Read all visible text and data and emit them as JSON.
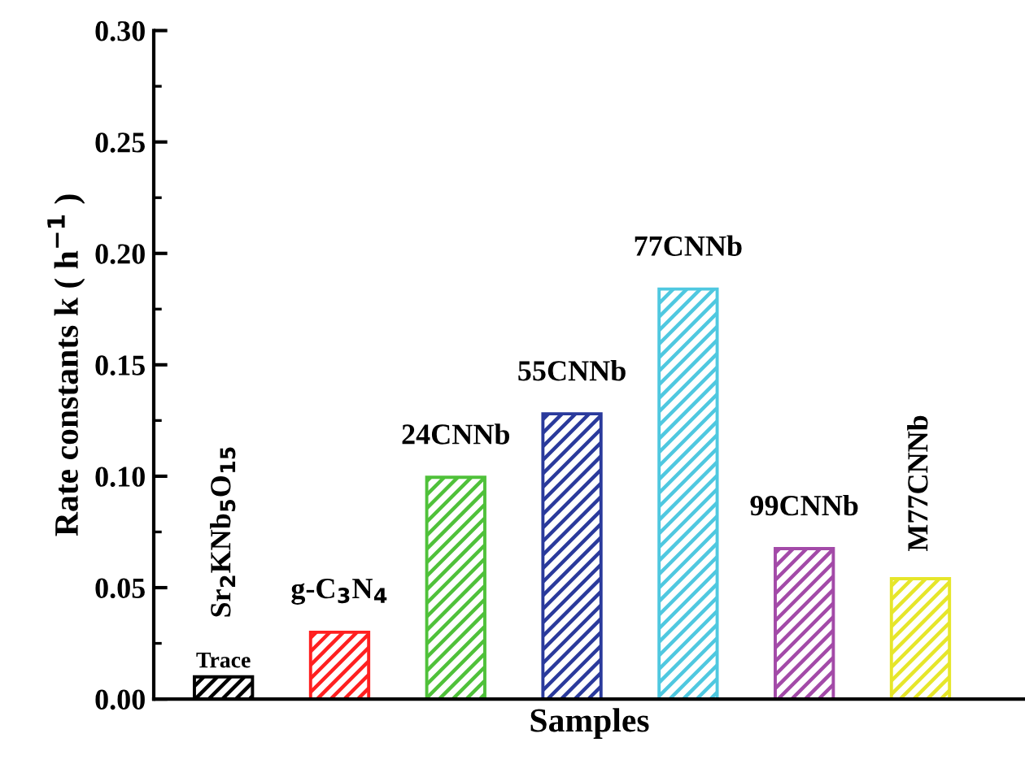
{
  "chart_data": {
    "type": "bar",
    "categories": [
      "Sr$_{2}$KNb$_{5}$O$_{15}$",
      "g-C$_{3}$N$_{4}$",
      "24CNNb",
      "55CNNb",
      "77CNNb",
      "99CNNb",
      "M77CNNb"
    ],
    "values": [
      0.01,
      0.03,
      0.0995,
      0.128,
      0.184,
      0.0675,
      0.054
    ],
    "colors": [
      "#000000",
      "#ff2020",
      "#4fc13a",
      "#2a3a9c",
      "#4fc8e0",
      "#a34aa8",
      "#e6e62a"
    ],
    "xlabel": "Samples",
    "ylabel": "Rate constants k ( h$^{−1}$ )",
    "ylim": [
      0,
      0.3
    ],
    "yticks": [
      {
        "value": 0,
        "label": "0.00"
      },
      {
        "value": 0.05,
        "label": "0.05"
      },
      {
        "value": 0.1,
        "label": "0.10"
      },
      {
        "value": 0.15,
        "label": "0.15"
      },
      {
        "value": 0.2,
        "label": "0.20"
      },
      {
        "value": 0.25,
        "label": "0.25"
      },
      {
        "value": 0.3,
        "label": "0.30"
      }
    ],
    "annotations": [
      {
        "text": "Trace",
        "x": "Sr$_{2}$KNb$_{5}$O$_{15}$",
        "y": 0.01
      }
    ],
    "tick_labels": "y",
    "grid": false,
    "legend": false
  }
}
